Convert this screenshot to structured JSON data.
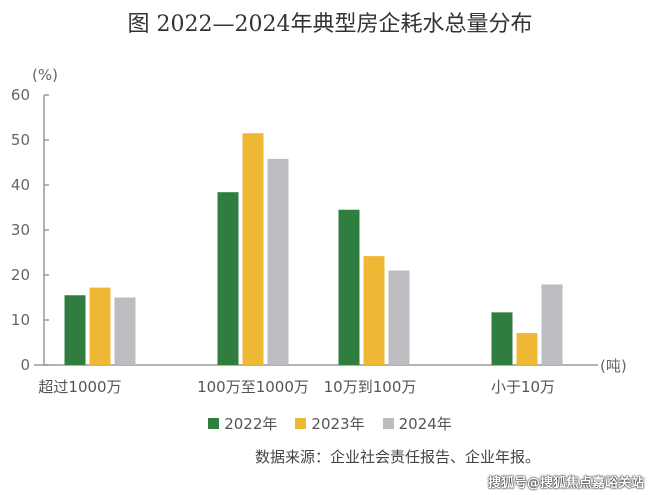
{
  "chart_data": {
    "type": "bar",
    "title": "图   2022—2024年典型房企耗水总量分布",
    "ylabel": "(%)",
    "xlabel": "(吨)",
    "ylim": [
      0,
      60
    ],
    "yticks": [
      "0",
      "10",
      "20",
      "30",
      "40",
      "50",
      "60"
    ],
    "grid": false,
    "legend_position": "bottom",
    "categories": [
      "超过1000万",
      "100万至1000万",
      "10万到100万",
      "小于10万"
    ],
    "series": [
      {
        "name": "2022年",
        "color": "#2f7e40",
        "values": [
          15.5,
          38.4,
          34.5,
          11.7
        ]
      },
      {
        "name": "2023年",
        "color": "#efb834",
        "values": [
          17.2,
          51.5,
          24.2,
          7.1
        ]
      },
      {
        "name": "2024年",
        "color": "#bdbdc1",
        "values": [
          15.0,
          45.8,
          21.0,
          17.9
        ]
      }
    ]
  },
  "source": "数据来源：企业社会责任报告、企业年报。",
  "watermark": "搜狐号@搜狐焦点嘉峪关站"
}
